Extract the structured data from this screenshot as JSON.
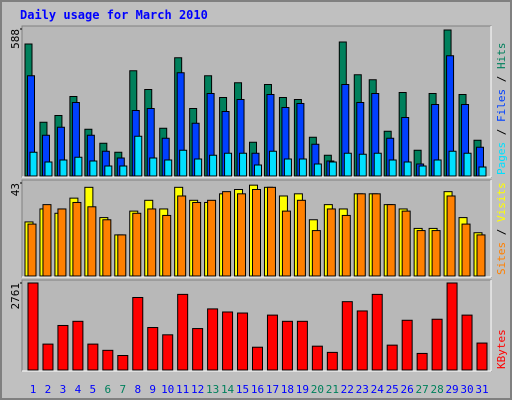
{
  "chart_data": [
    {
      "type": "bar",
      "title": "Daily usage for March 2010",
      "ylim": [
        0,
        588
      ],
      "yticks": [
        588
      ],
      "separator": " / ",
      "series": [
        {
          "name": "Pages",
          "color": "#00e0ff",
          "values": [
            95,
            56,
            64,
            75,
            60,
            40,
            40,
            159,
            72,
            64,
            103,
            68,
            83,
            91,
            91,
            44,
            99,
            68,
            68,
            48,
            56,
            91,
            87,
            91,
            64,
            56,
            40,
            64,
            99,
            91,
            36
          ]
        },
        {
          "name": "Files",
          "color": "#0040ff",
          "values": [
            401,
            163,
            195,
            294,
            163,
            99,
            72,
            262,
            270,
            151,
            413,
            211,
            330,
            258,
            306,
            91,
            326,
            274,
            290,
            127,
            60,
            366,
            294,
            330,
            151,
            234,
            48,
            286,
            481,
            286,
            115
          ]
        },
        {
          "name": "Hits",
          "color": "#00805c",
          "values": [
            528,
            215,
            242,
            318,
            187,
            131,
            95,
            421,
            346,
            191,
            473,
            270,
            401,
            314,
            373,
            135,
            366,
            314,
            306,
            155,
            83,
            536,
            405,
            385,
            179,
            334,
            103,
            330,
            584,
            326,
            143
          ]
        }
      ]
    },
    {
      "type": "bar",
      "ylim": [
        0,
        43
      ],
      "yticks": [
        43
      ],
      "separator": " / ",
      "series": [
        {
          "name": "Sites",
          "color": "#ff8000",
          "values": [
            24,
            33,
            31,
            34,
            32,
            26,
            19,
            29,
            31,
            28,
            37,
            34,
            35,
            39,
            38,
            40,
            41,
            30,
            35,
            21,
            31,
            28,
            38,
            38,
            33,
            30,
            21,
            21,
            37,
            24,
            19
          ]
        },
        {
          "name": "Visits",
          "color": "#ffff00",
          "values": [
            25,
            31,
            29,
            36,
            41,
            27,
            19,
            30,
            35,
            31,
            41,
            35,
            34,
            38,
            40,
            42,
            41,
            37,
            38,
            26,
            33,
            31,
            38,
            38,
            33,
            31,
            22,
            22,
            39,
            27,
            20
          ]
        }
      ]
    },
    {
      "type": "bar",
      "ylim": [
        0,
        2761
      ],
      "yticks": [
        2761
      ],
      "series": [
        {
          "name": "KBytes",
          "color": "#ff0000",
          "values": [
            2761,
            822,
            1413,
            1545,
            822,
            624,
            460,
            2301,
            1348,
            1117,
            2400,
            1315,
            1939,
            1841,
            1808,
            723,
            1742,
            1545,
            1545,
            756,
            559,
            2169,
            1874,
            2400,
            789,
            1578,
            526,
            1611,
            2761,
            1742,
            855
          ]
        }
      ],
      "categories": [
        "1",
        "2",
        "3",
        "4",
        "5",
        "6",
        "7",
        "8",
        "9",
        "10",
        "11",
        "12",
        "13",
        "14",
        "15",
        "16",
        "17",
        "18",
        "19",
        "20",
        "21",
        "22",
        "23",
        "24",
        "25",
        "26",
        "27",
        "28",
        "29",
        "30",
        "31"
      ],
      "category_colors": [
        "#0000ff",
        "#0000ff",
        "#0000ff",
        "#0000ff",
        "#0000ff",
        "#00805c",
        "#00805c",
        "#0000ff",
        "#0000ff",
        "#0000ff",
        "#0000ff",
        "#0000ff",
        "#00805c",
        "#00805c",
        "#0000ff",
        "#0000ff",
        "#0000ff",
        "#0000ff",
        "#0000ff",
        "#00805c",
        "#00805c",
        "#0000ff",
        "#0000ff",
        "#0000ff",
        "#0000ff",
        "#0000ff",
        "#00805c",
        "#00805c",
        "#0000ff",
        "#0000ff",
        "#0000ff"
      ]
    }
  ]
}
